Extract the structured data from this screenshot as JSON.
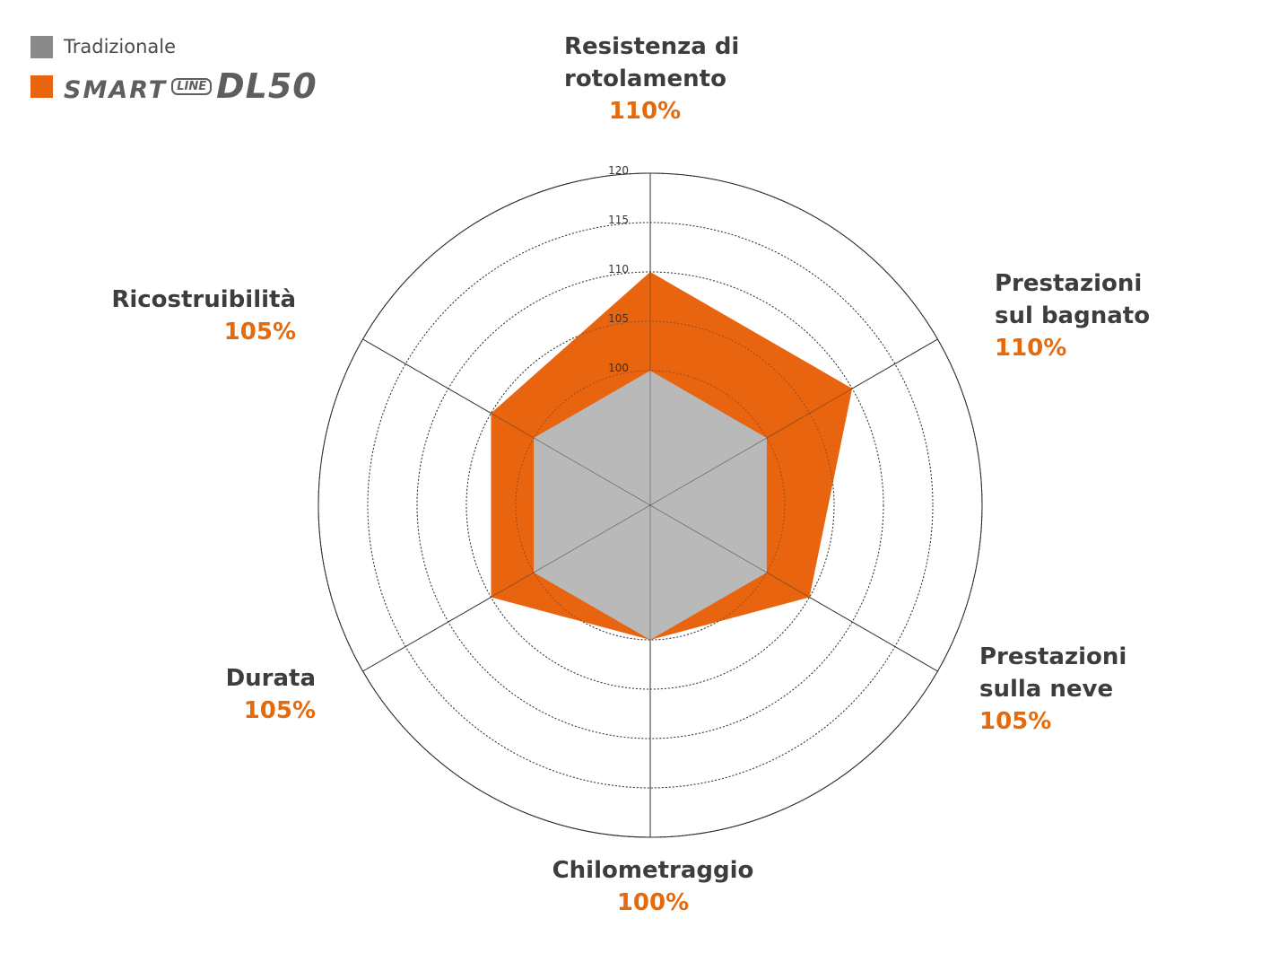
{
  "legend": {
    "items": [
      {
        "label": "Tradizionale",
        "color": "#8a8a8a"
      },
      {
        "label": "SMART LINE DL50",
        "brand_parts": [
          "SMART",
          "LINE",
          "DL50"
        ],
        "color": "#e8640e"
      }
    ]
  },
  "chart_data": {
    "type": "radar",
    "title": "",
    "axes": [
      {
        "name": "Resistenza di\nrotolamento",
        "value_label": "110%"
      },
      {
        "name": "Prestazioni\nsul bagnato",
        "value_label": "110%"
      },
      {
        "name": "Prestazioni\nsulla neve",
        "value_label": "105%"
      },
      {
        "name": "Chilometraggio",
        "value_label": "100%"
      },
      {
        "name": "Durata",
        "value_label": "105%"
      },
      {
        "name": "Ricostruibilità",
        "value_label": "105%"
      }
    ],
    "series": [
      {
        "name": "Tradizionale",
        "color": "#b9b9b9",
        "values": [
          100,
          100,
          100,
          100,
          100,
          100
        ]
      },
      {
        "name": "SMART LINE DL50",
        "color": "#e8640e",
        "values": [
          110,
          110,
          105,
          100,
          105,
          105
        ]
      }
    ],
    "scale": {
      "rings": [
        100,
        105,
        110,
        115,
        120
      ],
      "tick_labels": [
        "100",
        "105",
        "110",
        "115",
        "120"
      ]
    },
    "grid": true,
    "legend_position": "top-left"
  }
}
